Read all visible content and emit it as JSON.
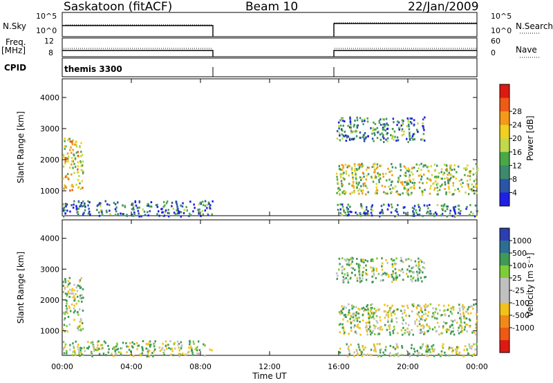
{
  "header": {
    "station": "Saskatoon (fitACF)",
    "beam": "Beam 10",
    "date": "22/Jan/2009"
  },
  "housekeeping": {
    "nsky_label": "N.Sky",
    "nsky_ticks": [
      "10^5",
      "10^0"
    ],
    "nsearch_label": "N.Search",
    "nsearch_ticks": [
      "10^5",
      "10^0"
    ],
    "freq_label_top": "Freq.",
    "freq_label_unit": "[MHz]",
    "freq_ticks": [
      "12",
      "8"
    ],
    "nave_label": "Nave",
    "nave_ticks": [
      "60",
      "0"
    ],
    "cpid_label": "CPID",
    "cpid_value": "themis 3300"
  },
  "colors": {
    "power": [
      "#1f1fe6",
      "#2a55a8",
      "#3d8a6e",
      "#49a848",
      "#c3d84a",
      "#f0d020",
      "#f39a1a",
      "#ef5a14",
      "#dd1a12"
    ],
    "velocity": [
      "#2b3fb0",
      "#2d6f92",
      "#3f9a56",
      "#7fcc3a",
      "#c0c0c0",
      "#c0c0c0",
      "#f2c21a",
      "#f28a18",
      "#ee5a14",
      "#dd1a12"
    ]
  },
  "chart_data": [
    {
      "type": "heatmap",
      "panel": "power",
      "ylabel": "Slant Range [km]",
      "yticks": [
        1000,
        2000,
        3000,
        4000
      ],
      "ylim": [
        200,
        4600
      ],
      "xlim_hours": [
        0,
        24
      ],
      "colorbar_label": "Power [dB]",
      "colorbar_ticks": [
        "4",
        "8",
        "12",
        "16",
        "20",
        "24",
        "28"
      ],
      "coverage_hours": [
        [
          0.0,
          8.7
        ],
        [
          15.8,
          24.0
        ]
      ],
      "echo_regions": [
        {
          "start": "00:00",
          "end": "01:10",
          "range_km": [
            1000,
            2750
          ],
          "power_db": 22
        },
        {
          "start": "00:00",
          "end": "08:40",
          "range_km": [
            200,
            700
          ],
          "power_db": 8
        },
        {
          "start": "15:50",
          "end": "24:00",
          "range_km": [
            900,
            1900
          ],
          "power_db": 18
        },
        {
          "start": "15:50",
          "end": "21:00",
          "range_km": [
            2600,
            3400
          ],
          "power_db": 10
        },
        {
          "start": "15:50",
          "end": "24:00",
          "range_km": [
            200,
            600
          ],
          "power_db": 8
        }
      ]
    },
    {
      "type": "heatmap",
      "panel": "velocity",
      "ylabel": "Slant Range [km]",
      "yticks": [
        1000,
        2000,
        3000,
        4000
      ],
      "ylim": [
        200,
        4600
      ],
      "xlim_hours": [
        0,
        24
      ],
      "xticks": [
        "00:00",
        "04:00",
        "08:00",
        "12:00",
        "16:00",
        "20:00",
        "00:00"
      ],
      "xlabel": "Time UT",
      "colorbar_label": "Velocity [m s⁻¹]",
      "colorbar_ticks": [
        "1000",
        "500",
        "100",
        "25",
        "-25",
        "-100",
        "-500",
        "-1000"
      ],
      "echo_regions": [
        {
          "start": "00:00",
          "end": "01:10",
          "range_km": [
            1000,
            2750
          ],
          "velocity_ms": 0
        },
        {
          "start": "00:00",
          "end": "08:40",
          "range_km": [
            200,
            700
          ],
          "velocity_ms": 60
        },
        {
          "start": "15:50",
          "end": "24:00",
          "range_km": [
            900,
            1900
          ],
          "velocity_ms": 0
        },
        {
          "start": "15:50",
          "end": "21:00",
          "range_km": [
            2600,
            3400
          ],
          "velocity_ms": 100
        },
        {
          "start": "15:50",
          "end": "24:00",
          "range_km": [
            200,
            600
          ],
          "velocity_ms": 0
        }
      ]
    }
  ]
}
